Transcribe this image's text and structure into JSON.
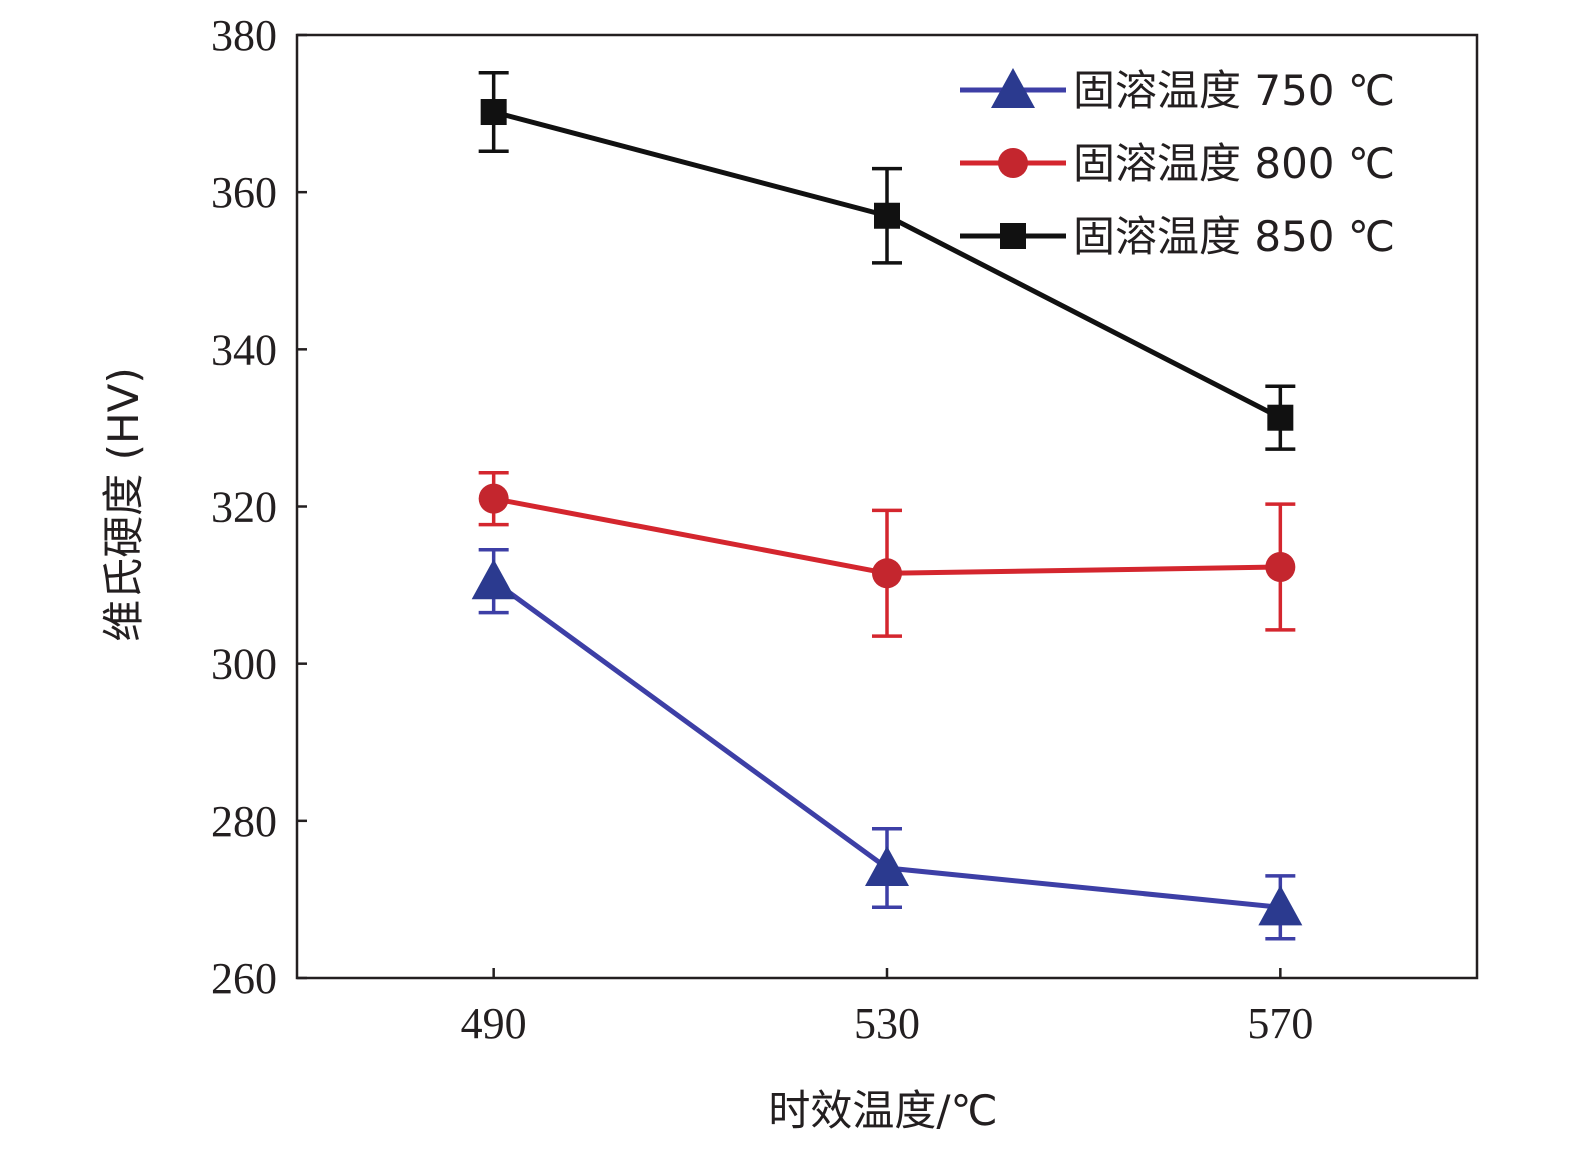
{
  "chart_data": {
    "type": "line",
    "xlabel": "时效温度/℃",
    "ylabel": "维氏硬度 (HV)",
    "x": [
      490,
      530,
      570
    ],
    "x_tick_labels": [
      "490",
      "530",
      "570"
    ],
    "xlim": [
      470,
      590
    ],
    "ylim": [
      260,
      380
    ],
    "y_ticks": [
      260,
      280,
      300,
      320,
      340,
      360,
      380
    ],
    "grid": false,
    "legend_position": "top-right",
    "error_bars": true,
    "series": [
      {
        "name": "固溶温度 750 ℃",
        "marker": "triangle",
        "color": "#2b3a8f",
        "line_color": "#3d3fa6",
        "values": [
          310.5,
          274,
          269
        ],
        "errors": [
          4,
          5,
          4
        ]
      },
      {
        "name": "固溶温度 800 ℃",
        "marker": "circle",
        "color": "#c4262e",
        "line_color": "#d4262e",
        "values": [
          321,
          311.5,
          312.3
        ],
        "errors": [
          3.3,
          8,
          8
        ]
      },
      {
        "name": "固溶温度 850 ℃",
        "marker": "square",
        "color": "#111111",
        "line_color": "#111111",
        "values": [
          370.2,
          357,
          331.3
        ],
        "errors": [
          5,
          6,
          4
        ]
      }
    ]
  }
}
